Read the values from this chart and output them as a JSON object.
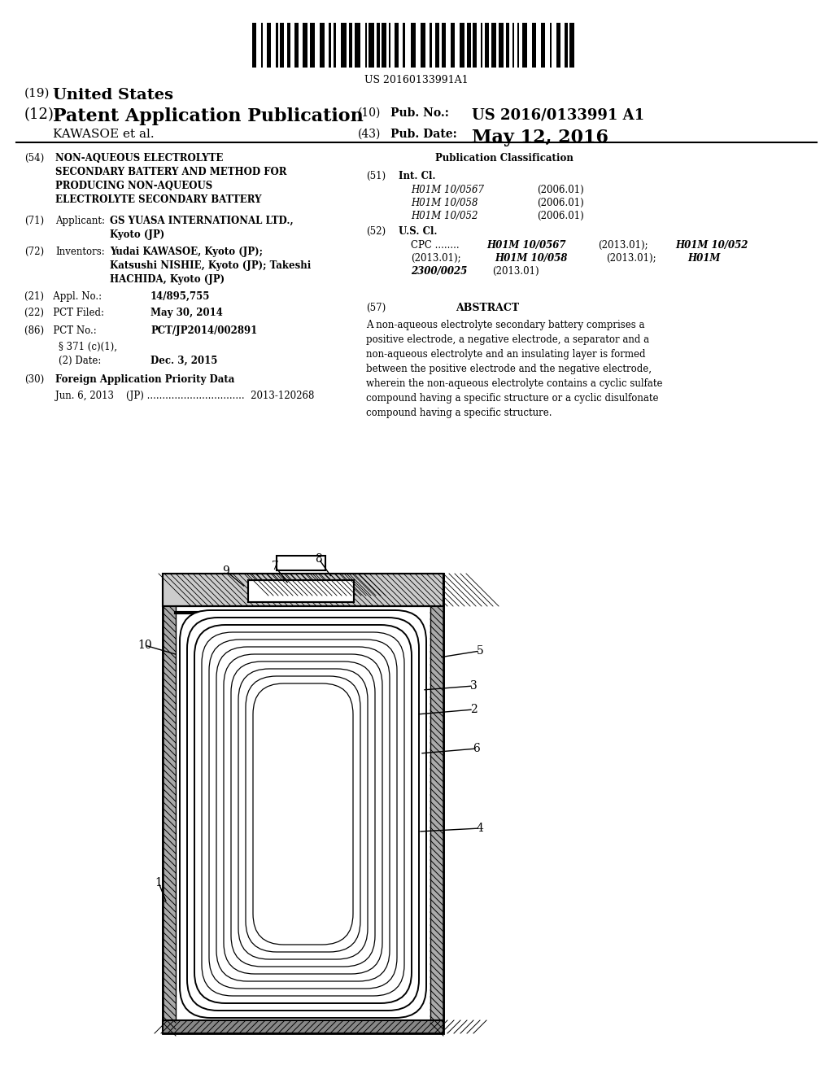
{
  "background_color": "#ffffff",
  "barcode_text": "US 20160133991A1",
  "us_label": "(19) United States",
  "pub_label": "(12) Patent Application Publication",
  "inventor_name": "KAWASOE et al.",
  "pub_no_label": "(10) Pub. No.:",
  "pub_no_value": "US 2016/0133991 A1",
  "pub_date_label": "(43) Pub. Date:",
  "pub_date_value": "May 12, 2016",
  "int_cl_items": [
    [
      "H01M 10/0567",
      "(2006.01)"
    ],
    [
      "H01M 10/058",
      "(2006.01)"
    ],
    [
      "H01M 10/052",
      "(2006.01)"
    ]
  ],
  "abstract_text": "A non-aqueous electrolyte secondary battery comprises a\npositive electrode, a negative electrode, a separator and a\nnon-aqueous electrolyte and an insulating layer is formed\nbetween the positive electrode and the negative electrode,\nwherein the non-aqueous electrolyte contains a cyclic sulfate\ncompound having a specific structure or a cyclic disulfonate\ncompound having a specific structure."
}
